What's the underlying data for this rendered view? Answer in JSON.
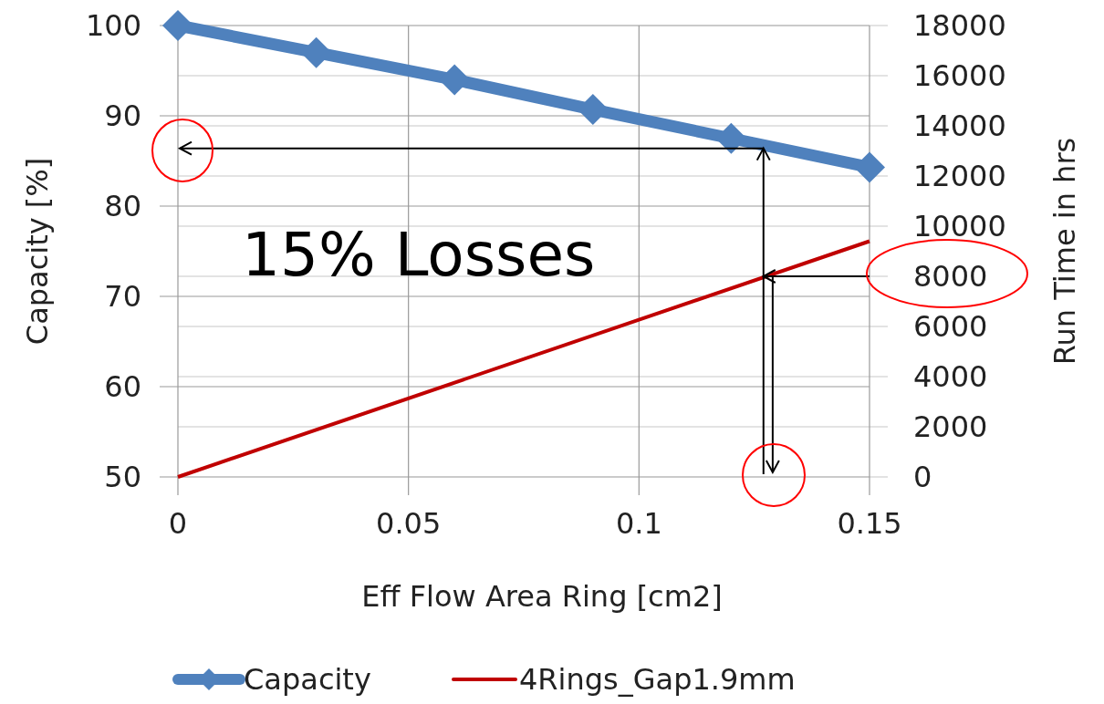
{
  "chart_data": {
    "type": "line",
    "xlabel": "Eff Flow Area Ring [cm2]",
    "ylabel": "Capacity [%]",
    "y2label": "Run Time in hrs",
    "xlim": [
      0,
      0.15
    ],
    "xticks": [
      0,
      0.05,
      0.1,
      0.15
    ],
    "ylim": [
      50,
      100
    ],
    "yticks": [
      50,
      60,
      70,
      80,
      90,
      100
    ],
    "y2lim": [
      0,
      18000
    ],
    "y2ticks": [
      0,
      2000,
      4000,
      6000,
      8000,
      10000,
      12000,
      14000,
      16000,
      18000
    ],
    "grid": true,
    "legend": "bottom",
    "series": [
      {
        "name": "Capacity",
        "color": "#4f81bd",
        "type": "line",
        "marker": "diamond",
        "x": [
          0,
          0.03,
          0.06,
          0.09,
          0.12,
          0.15
        ],
        "values": [
          100,
          97,
          94,
          90.7,
          87.5,
          84.3
        ]
      },
      {
        "name": "4Rings_Gap1.9mm",
        "color": "#c00000",
        "type": "line",
        "axis": "y2",
        "marker": "none",
        "x": [
          0,
          0.15
        ],
        "values": [
          0,
          9400
        ]
      }
    ],
    "ref_lines": [
      {
        "axis": "y",
        "value": 86.4,
        "color": "#000000"
      },
      {
        "axis": "x",
        "value": 0.127,
        "color": "#000000"
      },
      {
        "axis": "x",
        "value": 0.129,
        "color": "#000000"
      },
      {
        "axis": "y2",
        "value": 8000,
        "color": "#000000"
      }
    ],
    "annotations": [
      "15% Losses"
    ]
  }
}
